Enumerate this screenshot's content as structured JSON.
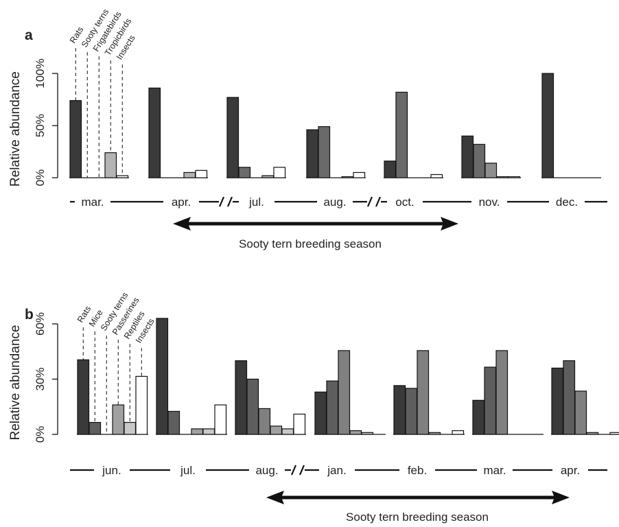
{
  "chart_data": [
    {
      "type": "bar",
      "panel_label": "a",
      "ylabel": "Relative abundance",
      "ylim": [
        0,
        100
      ],
      "yticks": [
        "0%",
        "50%",
        "100%"
      ],
      "categories": [
        "Rats",
        "Sooty terns",
        "Frigatebirds",
        "Tropicbirds",
        "Insects"
      ],
      "category_colors": [
        "#3a3a3a",
        "#6a6a6a",
        "#8e8e8e",
        "#b4b4b4",
        "#ffffff"
      ],
      "months": [
        "mar.",
        "apr.",
        "jul.",
        "aug.",
        "oct.",
        "nov.",
        "dec."
      ],
      "series": [
        {
          "month": "mar.",
          "values": [
            74,
            0,
            0,
            24,
            2
          ]
        },
        {
          "month": "apr.",
          "values": [
            86,
            0,
            0,
            5,
            7
          ]
        },
        {
          "month": "jul.",
          "values": [
            77,
            10,
            0,
            2,
            10
          ]
        },
        {
          "month": "aug.",
          "values": [
            46,
            49,
            0,
            1,
            5
          ]
        },
        {
          "month": "oct.",
          "values": [
            16,
            82,
            0,
            0,
            3
          ]
        },
        {
          "month": "nov.",
          "values": [
            40,
            32,
            14,
            1,
            1
          ]
        },
        {
          "month": "dec.",
          "values": [
            100,
            0,
            0,
            0,
            0
          ]
        }
      ],
      "breaks_after": [
        "apr.",
        "aug."
      ],
      "season_label": "Sooty tern breeding season",
      "season_span": [
        "apr.",
        "nov."
      ]
    },
    {
      "type": "bar",
      "panel_label": "b",
      "ylabel": "Relative abundance",
      "ylim": [
        0,
        60
      ],
      "yticks": [
        "0%",
        "30%",
        "60%"
      ],
      "categories": [
        "Rats",
        "Mice",
        "Sooty terns",
        "Passerines",
        "Reptiles",
        "Insects"
      ],
      "category_colors": [
        "#3a3a3a",
        "#5e5e5e",
        "#808080",
        "#a0a0a0",
        "#c8c8c8",
        "#ffffff"
      ],
      "months": [
        "jun.",
        "jul.",
        "aug.",
        "jan.",
        "feb.",
        "mar.",
        "apr."
      ],
      "series": [
        {
          "month": "jun.",
          "values": [
            40.5,
            6.5,
            0,
            16,
            6.5,
            31.5
          ]
        },
        {
          "month": "jul.",
          "values": [
            63,
            12.5,
            0,
            3,
            3,
            16
          ]
        },
        {
          "month": "aug.",
          "values": [
            40,
            30,
            14,
            4.5,
            3,
            11
          ]
        },
        {
          "month": "jan.",
          "values": [
            23,
            29,
            45.5,
            2,
            1,
            0
          ]
        },
        {
          "month": "feb.",
          "values": [
            26.5,
            25,
            45.5,
            1,
            0,
            2
          ]
        },
        {
          "month": "mar.",
          "values": [
            18.5,
            36.5,
            45.5,
            0,
            0,
            0
          ]
        },
        {
          "month": "apr.",
          "values": [
            36,
            40,
            23.5,
            1,
            0,
            1
          ]
        }
      ],
      "breaks_after": [
        "aug."
      ],
      "season_label": "Sooty tern breeding season",
      "season_span": [
        "jan.",
        "apr."
      ]
    }
  ]
}
